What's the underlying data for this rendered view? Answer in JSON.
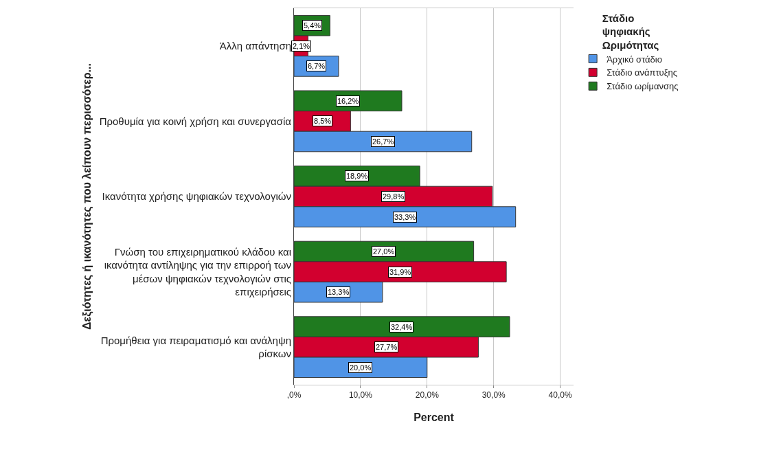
{
  "chart_data": {
    "type": "bar",
    "orientation": "horizontal",
    "xlabel": "Percent",
    "ylabel": "Δεξιότητες ή ικανότητες που λείπουν περισσότερ...",
    "legend_title": "Στάδιο ψηφιακής Ωριμότητας",
    "categories": [
      "Άλλη απάντηση",
      "Προθυμία για κοινή χρήση και συνεργασία",
      "Ικανότητα χρήσης ψηφιακών τεχνολογιών",
      "Γνώση του επιχειρηματικού κλάδου και ικανότητα αντίληψης για την επιρροή των μέσων ψηφιακών τεχνολογιών στις επιχειρήσεις",
      "Προμήθεια για πειραματισμό και ανάληψη ρίσκων"
    ],
    "series": [
      {
        "name": "Άρχικό στάδιο",
        "color": "#5094e6",
        "values": [
          6.7,
          26.7,
          33.3,
          13.3,
          20.0
        ],
        "value_labels": [
          "6,7%",
          "26,7%",
          "33,3%",
          "13,3%",
          "20,0%"
        ]
      },
      {
        "name": "Στάδιο ανάπτυξης",
        "color": "#d2002f",
        "values": [
          2.1,
          8.5,
          29.8,
          31.9,
          27.7
        ],
        "value_labels": [
          "2,1%",
          "8,5%",
          "29,8%",
          "31,9%",
          "27,7%"
        ]
      },
      {
        "name": "Στάδιο ωρίμανσης",
        "color": "#1f7a1f",
        "values": [
          5.4,
          16.2,
          18.9,
          27.0,
          32.4
        ],
        "value_labels": [
          "5,4%",
          "16,2%",
          "18,9%",
          "27,0%",
          "32,4%"
        ]
      }
    ],
    "xlim": [
      0,
      42
    ],
    "xticks": [
      {
        "value": 0,
        "label": ",0%"
      },
      {
        "value": 10,
        "label": "10,0%"
      },
      {
        "value": 20,
        "label": "20,0%"
      },
      {
        "value": 30,
        "label": "30,0%"
      },
      {
        "value": 40,
        "label": "40,0%"
      }
    ],
    "grid": "x",
    "legend": "top right"
  }
}
